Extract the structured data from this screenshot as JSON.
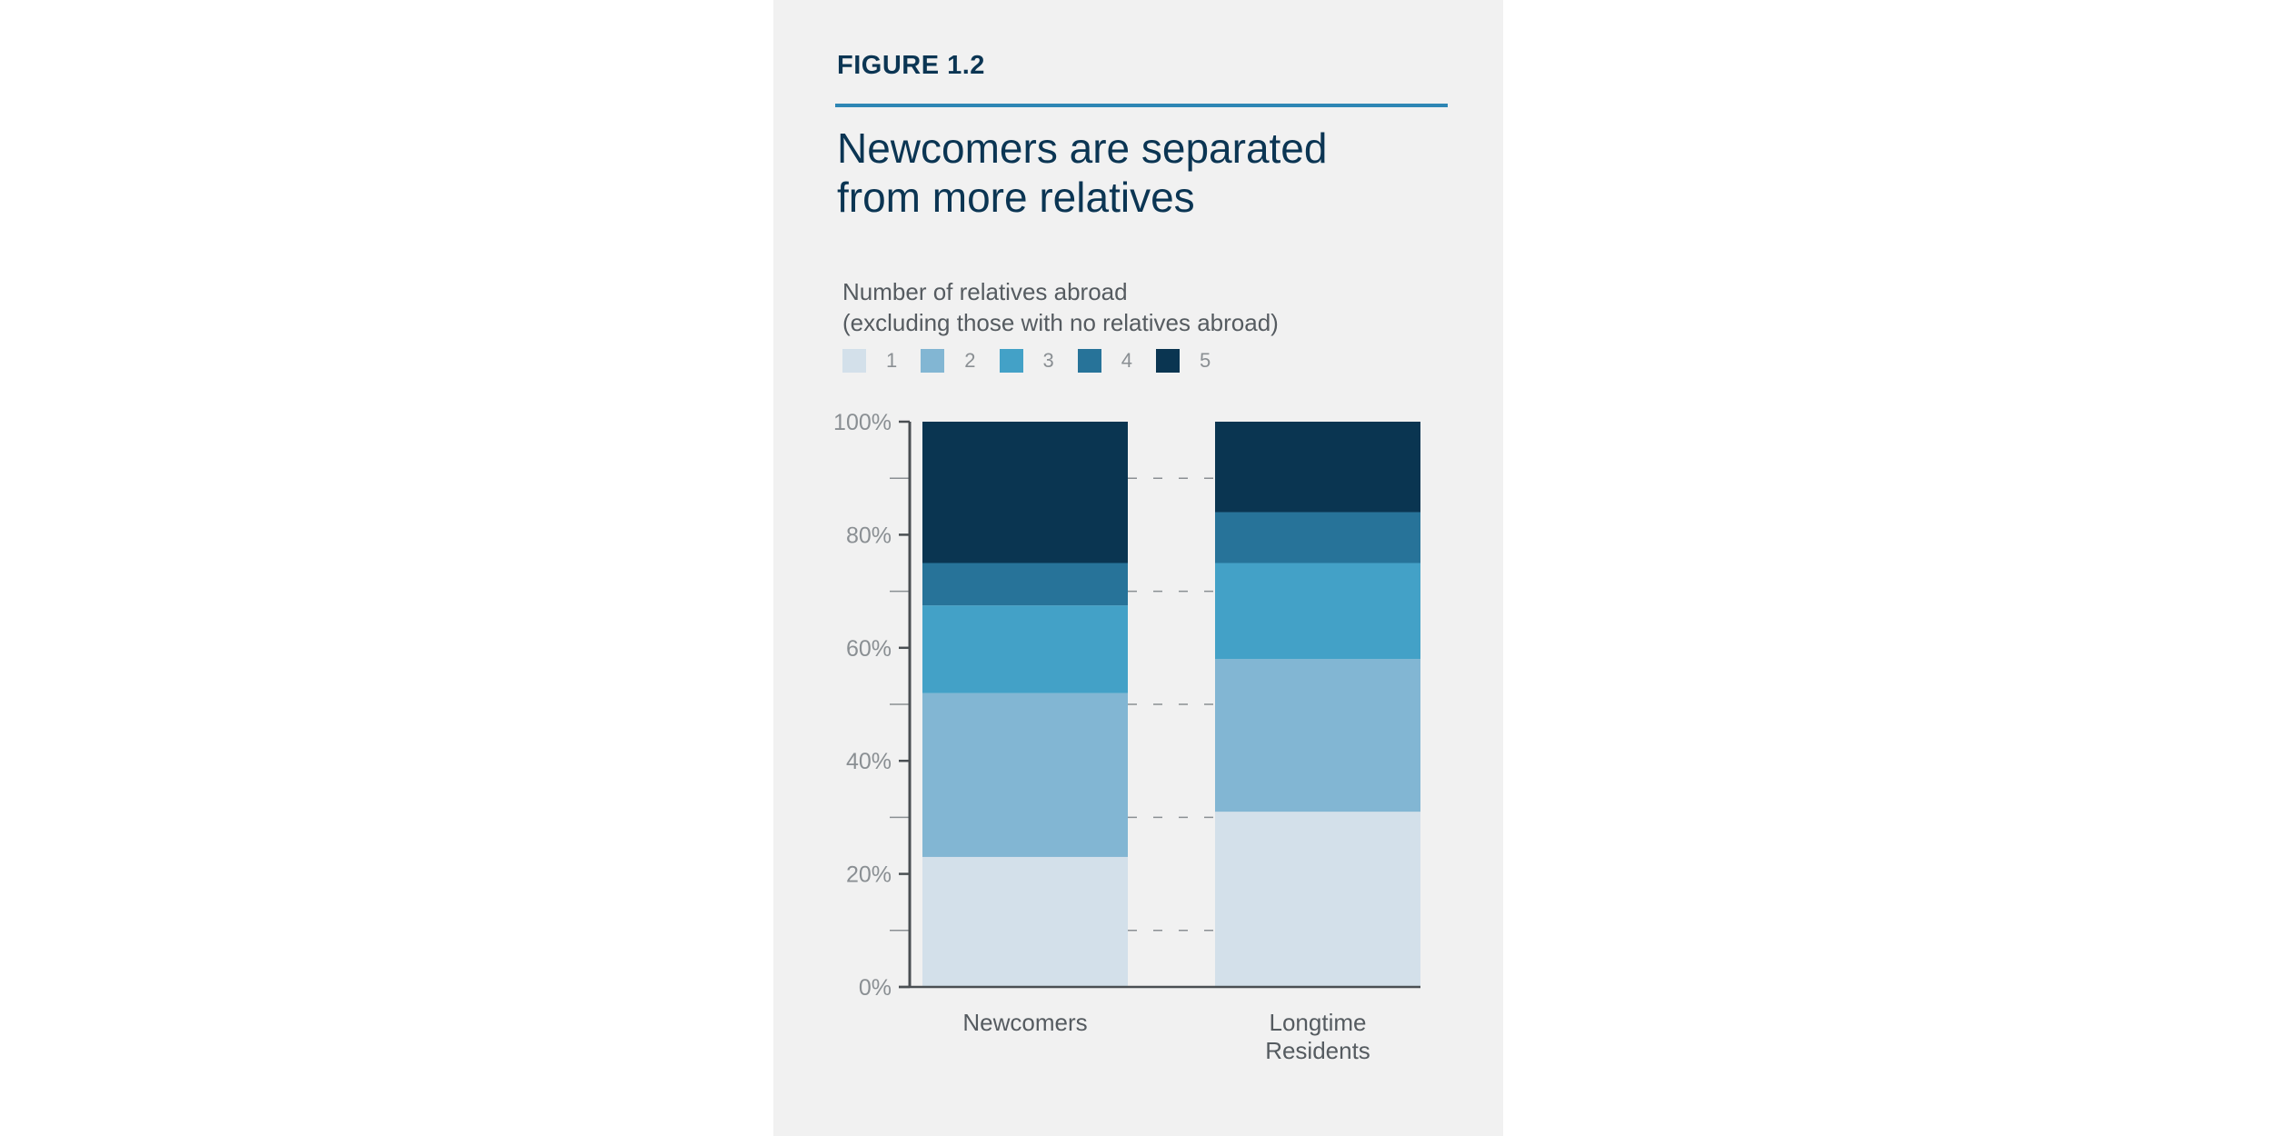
{
  "figure_label": "FIGURE 1.2",
  "title_lines": [
    "Newcomers are separated",
    "from more relatives"
  ],
  "subtitle_lines": [
    "Number of relatives abroad",
    "(excluding those with no relatives abroad)"
  ],
  "colors": {
    "panel_bg": "#f1f1f1",
    "accent": "#2e86b4",
    "title": "#0b3553",
    "series": [
      "#d3e0ea",
      "#82b6d3",
      "#43a1c7",
      "#277399",
      "#0a3551"
    ]
  },
  "chart_data": {
    "type": "bar",
    "stacked": true,
    "categories": [
      "Newcomers",
      "Longtime Residents"
    ],
    "series": [
      {
        "name": "1",
        "values": [
          23,
          31
        ]
      },
      {
        "name": "2",
        "values": [
          29,
          27
        ]
      },
      {
        "name": "3",
        "values": [
          15.5,
          17
        ]
      },
      {
        "name": "4",
        "values": [
          7.5,
          9
        ]
      },
      {
        "name": "5",
        "values": [
          25,
          16
        ]
      }
    ],
    "y_ticks": [
      "0%",
      "20%",
      "40%",
      "60%",
      "80%",
      "100%"
    ],
    "ylim": [
      0,
      100
    ],
    "legend_position": "top-left",
    "grid": "dashed between bars"
  }
}
